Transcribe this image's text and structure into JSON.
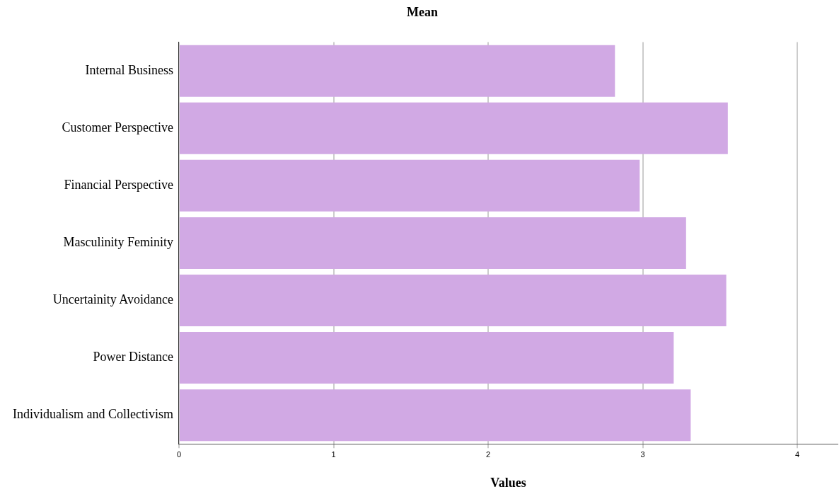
{
  "chart_data": {
    "type": "bar",
    "orientation": "horizontal",
    "title": "Mean",
    "xlabel": "Values",
    "categories": [
      "Internal Business",
      "Customer Perspective",
      "Financial Perspective",
      "Masculinity Feminity",
      "Uncertainity Avoidance",
      "Power Distance",
      "Individualism and Collectivism"
    ],
    "values": [
      2.82,
      3.55,
      2.98,
      3.28,
      3.54,
      3.2,
      3.31
    ],
    "color": "#d1a9e4",
    "xlim": [
      0,
      4.26
    ],
    "xticks": [
      0,
      1,
      2,
      3,
      4
    ],
    "grid": "x",
    "legend": false
  }
}
